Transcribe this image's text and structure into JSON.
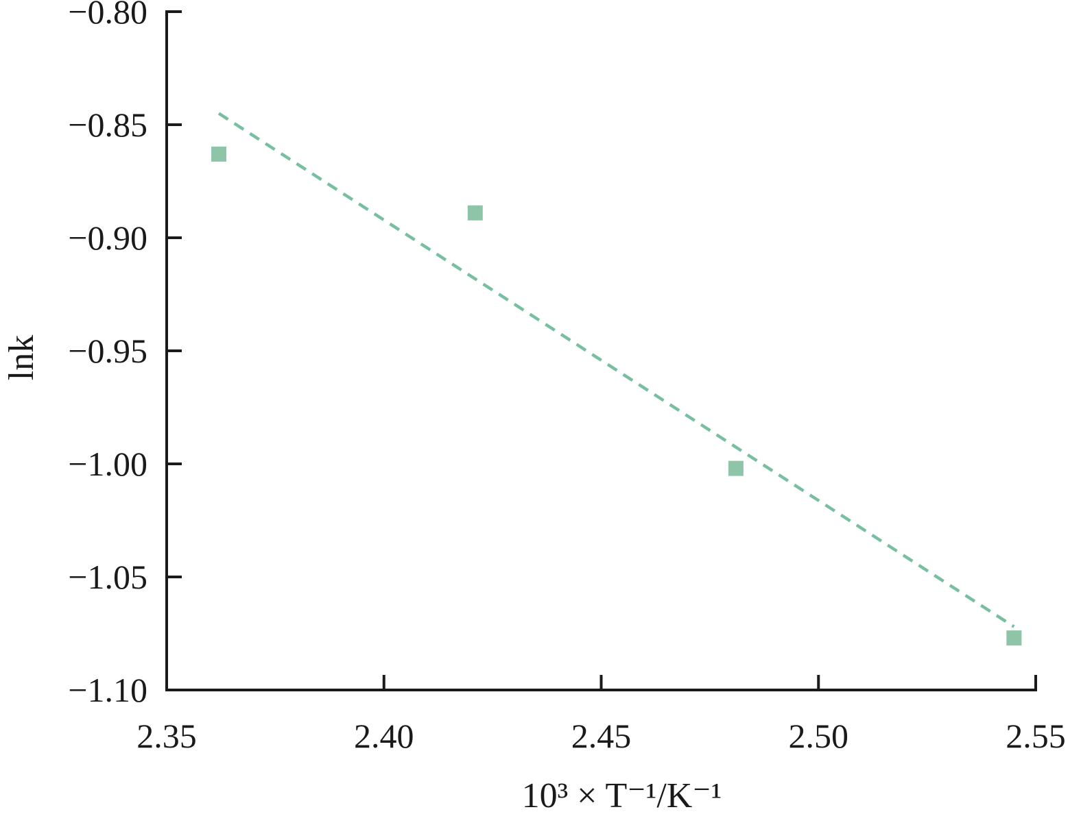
{
  "chart_data": {
    "type": "scatter",
    "title": "",
    "xlabel": "10³ × T⁻¹/K⁻¹",
    "ylabel": "lnk",
    "xlim": [
      2.35,
      2.55
    ],
    "ylim": [
      -1.1,
      -0.8
    ],
    "x_ticks": [
      "2.35",
      "2.40",
      "2.45",
      "2.50",
      "2.55"
    ],
    "y_ticks": [
      "−0.80",
      "−0.85",
      "−0.90",
      "−0.95",
      "−1.00",
      "−1.05",
      "−1.10"
    ],
    "grid": false,
    "legend": "none",
    "series": [
      {
        "type": "scatter",
        "marker": "square",
        "color": "#8ec5a8",
        "x": [
          2.362,
          2.421,
          2.481,
          2.545
        ],
        "y": [
          -0.863,
          -0.889,
          -1.002,
          -1.077
        ]
      }
    ],
    "fit_line": {
      "style": "dashed",
      "color": "#78bfa0",
      "x": [
        2.362,
        2.545
      ],
      "y": [
        -0.845,
        -1.072
      ]
    }
  }
}
